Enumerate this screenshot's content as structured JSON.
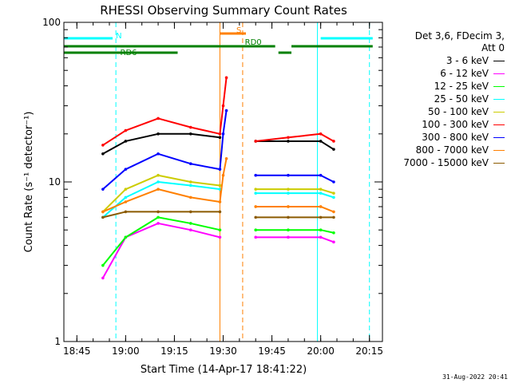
{
  "chart_data": {
    "type": "line",
    "title": "RHESSI Observing Summary Count Rates",
    "xlabel": "Start Time (14-Apr-17 18:41:22)",
    "ylabel": "Count Rate (s⁻¹ detector⁻¹)",
    "y_scale": "log",
    "ylim": [
      1,
      100
    ],
    "xlim": [
      "18:41",
      "20:19"
    ],
    "x_ticks": [
      "18:45",
      "19:00",
      "19:15",
      "19:30",
      "19:45",
      "20:00",
      "20:15"
    ],
    "y_ticks": [
      "1",
      "10",
      "100"
    ],
    "legend_title": [
      "Det 3,6, FDecim 3,",
      "Att 0"
    ],
    "legend_position": "right",
    "series": [
      {
        "name": "3 - 6 keV",
        "color": "#000000",
        "x": [
          "18:53",
          "19:00",
          "19:10",
          "19:20",
          "19:29",
          "19:35",
          "19:40",
          "19:50",
          "20:00",
          "20:04"
        ],
        "y": [
          15,
          18,
          20,
          20,
          19,
          null,
          18,
          18,
          18,
          16
        ]
      },
      {
        "name": "6 - 12 keV",
        "color": "#ff00ff",
        "x": [
          "18:53",
          "19:00",
          "19:10",
          "19:20",
          "19:29",
          "19:35",
          "19:40",
          "19:50",
          "20:00",
          "20:04"
        ],
        "y": [
          2.5,
          4.5,
          5.5,
          5.0,
          4.5,
          null,
          4.5,
          4.5,
          4.5,
          4.2
        ]
      },
      {
        "name": "12 - 25 keV",
        "color": "#00ff00",
        "x": [
          "18:53",
          "19:00",
          "19:10",
          "19:20",
          "19:29",
          "19:35",
          "19:40",
          "19:50",
          "20:00",
          "20:04"
        ],
        "y": [
          3.0,
          4.5,
          6.0,
          5.5,
          5.0,
          null,
          5.0,
          5.0,
          5.0,
          4.8
        ]
      },
      {
        "name": "25 - 50 keV",
        "color": "#00ffff",
        "x": [
          "18:53",
          "19:00",
          "19:10",
          "19:20",
          "19:29",
          "19:35",
          "19:40",
          "19:50",
          "20:00",
          "20:04"
        ],
        "y": [
          6.0,
          8.0,
          10.0,
          9.5,
          9.0,
          null,
          8.5,
          8.5,
          8.5,
          8.0
        ]
      },
      {
        "name": "50 - 100 keV",
        "color": "#cccc00",
        "x": [
          "18:53",
          "19:00",
          "19:10",
          "19:20",
          "19:29",
          "19:35",
          "19:40",
          "19:50",
          "20:00",
          "20:04"
        ],
        "y": [
          6.5,
          9.0,
          11.0,
          10.0,
          9.5,
          null,
          9.0,
          9.0,
          9.0,
          8.5
        ]
      },
      {
        "name": "100 - 300 keV",
        "color": "#ff0000",
        "x": [
          "18:53",
          "19:00",
          "19:10",
          "19:20",
          "19:29",
          "19:30",
          "19:31",
          "19:35",
          "19:40",
          "19:50",
          "20:00",
          "20:04"
        ],
        "y": [
          17,
          21,
          25,
          22,
          20,
          30,
          45,
          null,
          18,
          19,
          20,
          18
        ]
      },
      {
        "name": "300 - 800 keV",
        "color": "#0000ff",
        "x": [
          "18:53",
          "19:00",
          "19:10",
          "19:20",
          "19:29",
          "19:30",
          "19:31",
          "19:35",
          "19:40",
          "19:50",
          "20:00",
          "20:04"
        ],
        "y": [
          9.0,
          12.0,
          15.0,
          13.0,
          12.0,
          20,
          28,
          null,
          11.0,
          11.0,
          11.0,
          10.0
        ]
      },
      {
        "name": "800 - 7000 keV",
        "color": "#ff8000",
        "x": [
          "18:53",
          "19:00",
          "19:10",
          "19:20",
          "19:29",
          "19:30",
          "19:31",
          "19:35",
          "19:40",
          "19:50",
          "20:00",
          "20:04"
        ],
        "y": [
          6.5,
          7.5,
          9.0,
          8.0,
          7.5,
          11,
          14,
          null,
          7.0,
          7.0,
          7.0,
          6.5
        ]
      },
      {
        "name": "7000 - 15000 keV",
        "color": "#8b5a00",
        "x": [
          "18:53",
          "19:00",
          "19:10",
          "19:20",
          "19:29",
          "19:35",
          "19:40",
          "19:50",
          "20:00",
          "20:04"
        ],
        "y": [
          6.0,
          6.5,
          6.5,
          6.5,
          6.5,
          null,
          6.0,
          6.0,
          6.0,
          6.0
        ]
      }
    ],
    "annotations": [
      {
        "label": "N",
        "color": "#00ffff",
        "type": "bar",
        "segments": [
          [
            "18:41",
            "18:56"
          ],
          [
            "20:00",
            "20:16"
          ]
        ]
      },
      {
        "label": "RD0",
        "color": "#008000",
        "type": "bar",
        "segments": [
          [
            "18:41",
            "19:46"
          ],
          [
            "19:51",
            "20:16"
          ]
        ]
      },
      {
        "label": "RD6",
        "color": "#008000",
        "type": "bar",
        "segments": [
          [
            "18:41",
            "19:16"
          ],
          [
            "19:47",
            "19:51"
          ]
        ]
      },
      {
        "label": "S",
        "color": "#ff8000",
        "type": "bar",
        "segments": [
          [
            "19:29",
            "19:37"
          ]
        ]
      }
    ],
    "vlines": [
      {
        "x": "18:41",
        "color": "#00ffff",
        "style": "solid"
      },
      {
        "x": "18:57",
        "color": "#00ffff",
        "style": "dashed"
      },
      {
        "x": "19:29",
        "color": "#ff8000",
        "style": "solid"
      },
      {
        "x": "19:36",
        "color": "#ff8000",
        "style": "dashed"
      },
      {
        "x": "19:59",
        "color": "#00ffff",
        "style": "solid"
      },
      {
        "x": "20:15",
        "color": "#00ffff",
        "style": "dashed"
      }
    ],
    "grid": false
  },
  "legend": {
    "title_line1": "Det 3,6, FDecim 3,",
    "title_line2": "Att 0"
  },
  "footer": {
    "timestamp": "31-Aug-2022 20:41"
  }
}
